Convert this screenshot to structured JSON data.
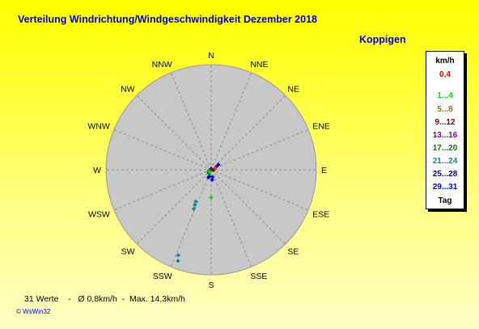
{
  "title": "Verteilung Windrichtung/Windgeschwindigkeit  Dezember 2018",
  "station": "Koppigen",
  "directions": [
    "N",
    "NNE",
    "NE",
    "ENE",
    "E",
    "ESE",
    "SE",
    "SSE",
    "S",
    "SSW",
    "SW",
    "WSW",
    "W",
    "WNW",
    "NW",
    "NNW"
  ],
  "legend": {
    "unit": "km/h",
    "items": [
      {
        "label": "0,4",
        "color": "#e00000"
      },
      {
        "label": "1...4",
        "color": "#00e000"
      },
      {
        "label": "5...8",
        "color": "#8c7400"
      },
      {
        "label": "9...12",
        "color": "#7a0000"
      },
      {
        "label": "13...16",
        "color": "#8c008c"
      },
      {
        "label": "17...20",
        "color": "#007a00"
      },
      {
        "label": "21...24",
        "color": "#008c8c"
      },
      {
        "label": "25...28",
        "color": "#0000b0"
      },
      {
        "label": "29...31",
        "color": "#0000ff"
      }
    ],
    "footer": "Tag"
  },
  "footer": {
    "count": "31 Werte",
    "sep1": "-",
    "avg": "Ø 0,8km/h",
    "sep2": "-",
    "max": "Max. 14,3km/h"
  },
  "credit": "© WsWin32",
  "chart_data": {
    "type": "scatter",
    "coordinates": "polar",
    "angle_unit": "degrees clockwise from N",
    "radial_unit": "km/h",
    "radial_max": 15.5,
    "grid": true,
    "points": [
      {
        "dir": 200,
        "speed": 14.3,
        "color": "#008c8c"
      },
      {
        "dir": 201,
        "speed": 13.5,
        "color": "#008c8c"
      },
      {
        "dir": 204,
        "speed": 6.3,
        "color": "#008c8c"
      },
      {
        "dir": 205,
        "speed": 5.7,
        "color": "#008c8c"
      },
      {
        "dir": 206,
        "speed": 5.2,
        "color": "#008c8c"
      },
      {
        "dir": 180,
        "speed": 4.1,
        "color": "#00e000"
      },
      {
        "dir": 175,
        "speed": 1.5,
        "color": "#0000ff"
      },
      {
        "dir": 170,
        "speed": 1.1,
        "color": "#0000ff"
      },
      {
        "dir": 195,
        "speed": 1.0,
        "color": "#0000ff"
      },
      {
        "dir": 230,
        "speed": 0.5,
        "color": "#0000b0"
      },
      {
        "dir": 200,
        "speed": 1.2,
        "color": "#0000b0"
      },
      {
        "dir": 210,
        "speed": 0.6,
        "color": "#007a00"
      },
      {
        "dir": 250,
        "speed": 0.3,
        "color": "#007a00"
      },
      {
        "dir": 225,
        "speed": 0.4,
        "color": "#00e000"
      },
      {
        "dir": 90,
        "speed": 0.4,
        "color": "#e00000"
      },
      {
        "dir": 0,
        "speed": 0.2,
        "color": "#8c008c"
      },
      {
        "dir": 60,
        "speed": 0.9,
        "color": "#8c008c"
      },
      {
        "dir": 55,
        "speed": 1.3,
        "color": "#0000b0"
      },
      {
        "dir": 70,
        "speed": 0.6,
        "color": "#8c7400"
      },
      {
        "dir": 100,
        "speed": 0.3,
        "color": "#7a0000"
      }
    ]
  }
}
